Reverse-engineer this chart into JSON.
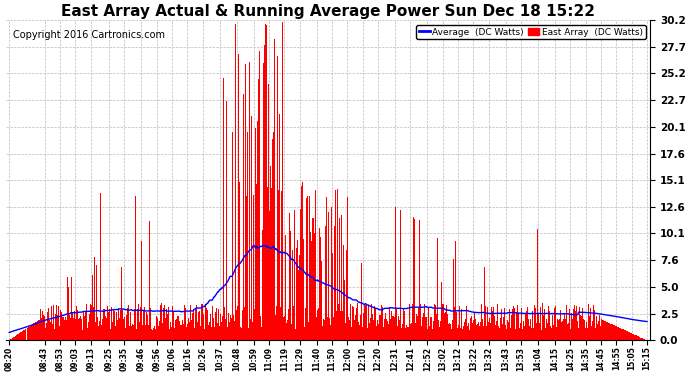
{
  "title": "East Array Actual & Running Average Power Sun Dec 18 15:22",
  "copyright": "Copyright 2016 Cartronics.com",
  "yticks": [
    0.0,
    2.5,
    5.0,
    7.6,
    10.1,
    12.6,
    15.1,
    17.6,
    20.1,
    22.7,
    25.2,
    27.7,
    30.2
  ],
  "ylim": [
    0.0,
    30.2
  ],
  "bg_color": "#ffffff",
  "plot_bg_color": "#ffffff",
  "grid_color": "#bbbbbb",
  "bar_color": "#ff0000",
  "avg_color": "#0000ff",
  "title_color": "#000000",
  "title_fontsize": 11,
  "copyright_fontsize": 7,
  "legend_avg_label": "Average  (DC Watts)",
  "legend_east_label": "East Array  (DC Watts)",
  "xtick_labels": [
    "08:20",
    "08:43",
    "08:53",
    "09:03",
    "09:13",
    "09:25",
    "09:35",
    "09:46",
    "09:56",
    "10:06",
    "10:16",
    "10:26",
    "10:37",
    "10:48",
    "10:59",
    "11:09",
    "11:19",
    "11:29",
    "11:40",
    "11:50",
    "12:00",
    "12:10",
    "12:20",
    "12:31",
    "12:41",
    "12:52",
    "13:02",
    "13:12",
    "13:22",
    "13:32",
    "13:43",
    "13:53",
    "14:04",
    "14:15",
    "14:25",
    "14:35",
    "14:45",
    "14:55",
    "15:05",
    "15:15"
  ]
}
